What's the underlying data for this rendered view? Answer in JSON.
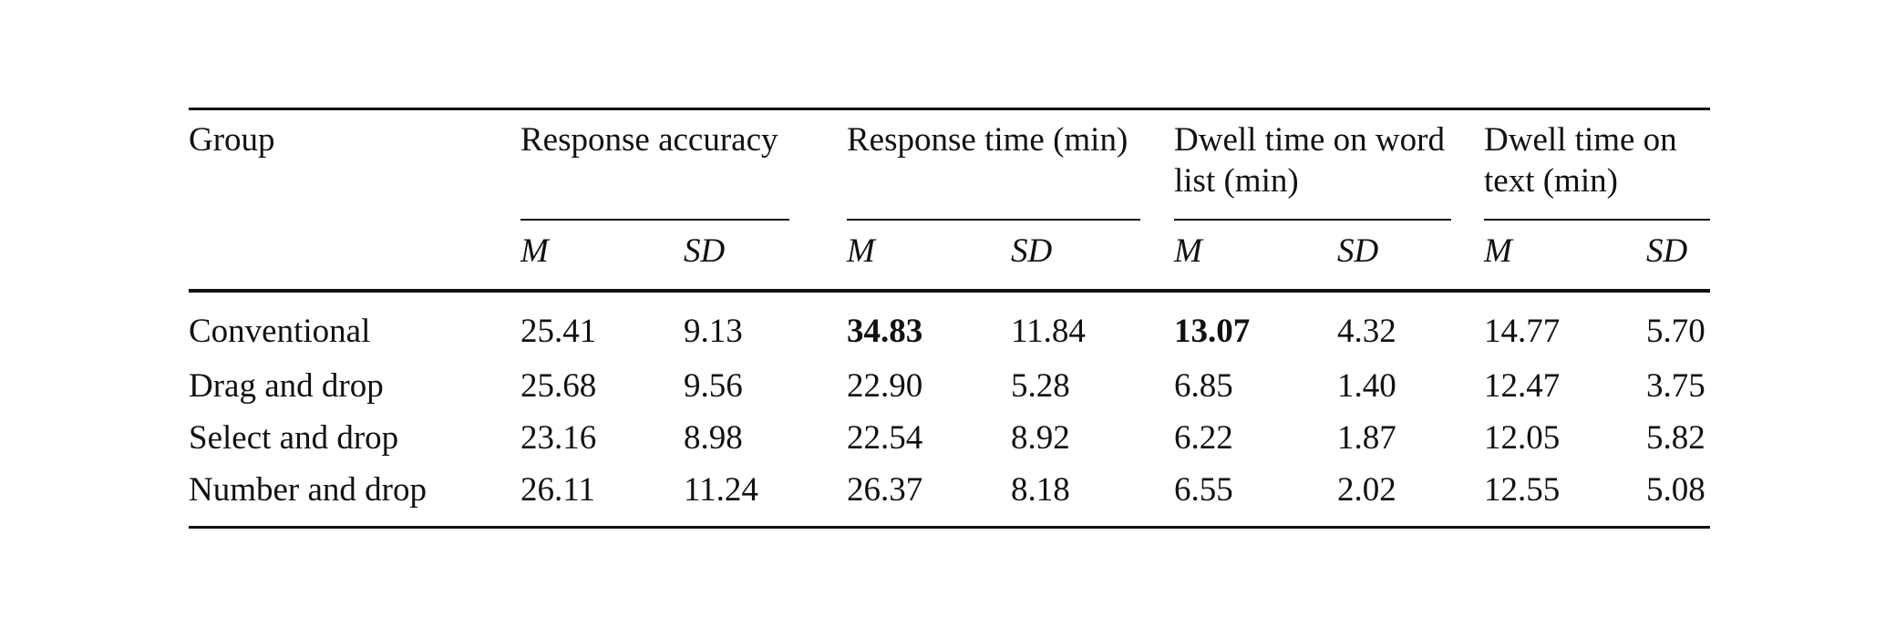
{
  "table": {
    "header": {
      "group": "Group",
      "groups": [
        {
          "line1": "Response accuracy",
          "line2": ""
        },
        {
          "line1": "Response time (min)",
          "line2": ""
        },
        {
          "line1": "Dwell time on word",
          "line2": "list (min)"
        },
        {
          "line1": "Dwell time on",
          "line2": "text (min)"
        }
      ],
      "sub": {
        "m": "M",
        "sd": "SD"
      }
    },
    "rows": [
      {
        "group": "Conventional",
        "cells": [
          "25.41",
          "9.13",
          "34.83",
          "11.84",
          "13.07",
          "4.32",
          "14.77",
          "5.70"
        ]
      },
      {
        "group": "Drag and drop",
        "cells": [
          "25.68",
          "9.56",
          "22.90",
          "5.28",
          "6.85",
          "1.40",
          "12.47",
          "3.75"
        ]
      },
      {
        "group": "Select and drop",
        "cells": [
          "23.16",
          "8.98",
          "22.54",
          "8.92",
          "6.22",
          "1.87",
          "12.05",
          "5.82"
        ]
      },
      {
        "group": "Number and drop",
        "cells": [
          "26.11",
          "11.24",
          "26.37",
          "8.18",
          "6.55",
          "2.02",
          "12.55",
          "5.08"
        ]
      }
    ],
    "bold_cells": [
      "Conventional:Response time M",
      "Conventional:Dwell time on word list M"
    ]
  }
}
